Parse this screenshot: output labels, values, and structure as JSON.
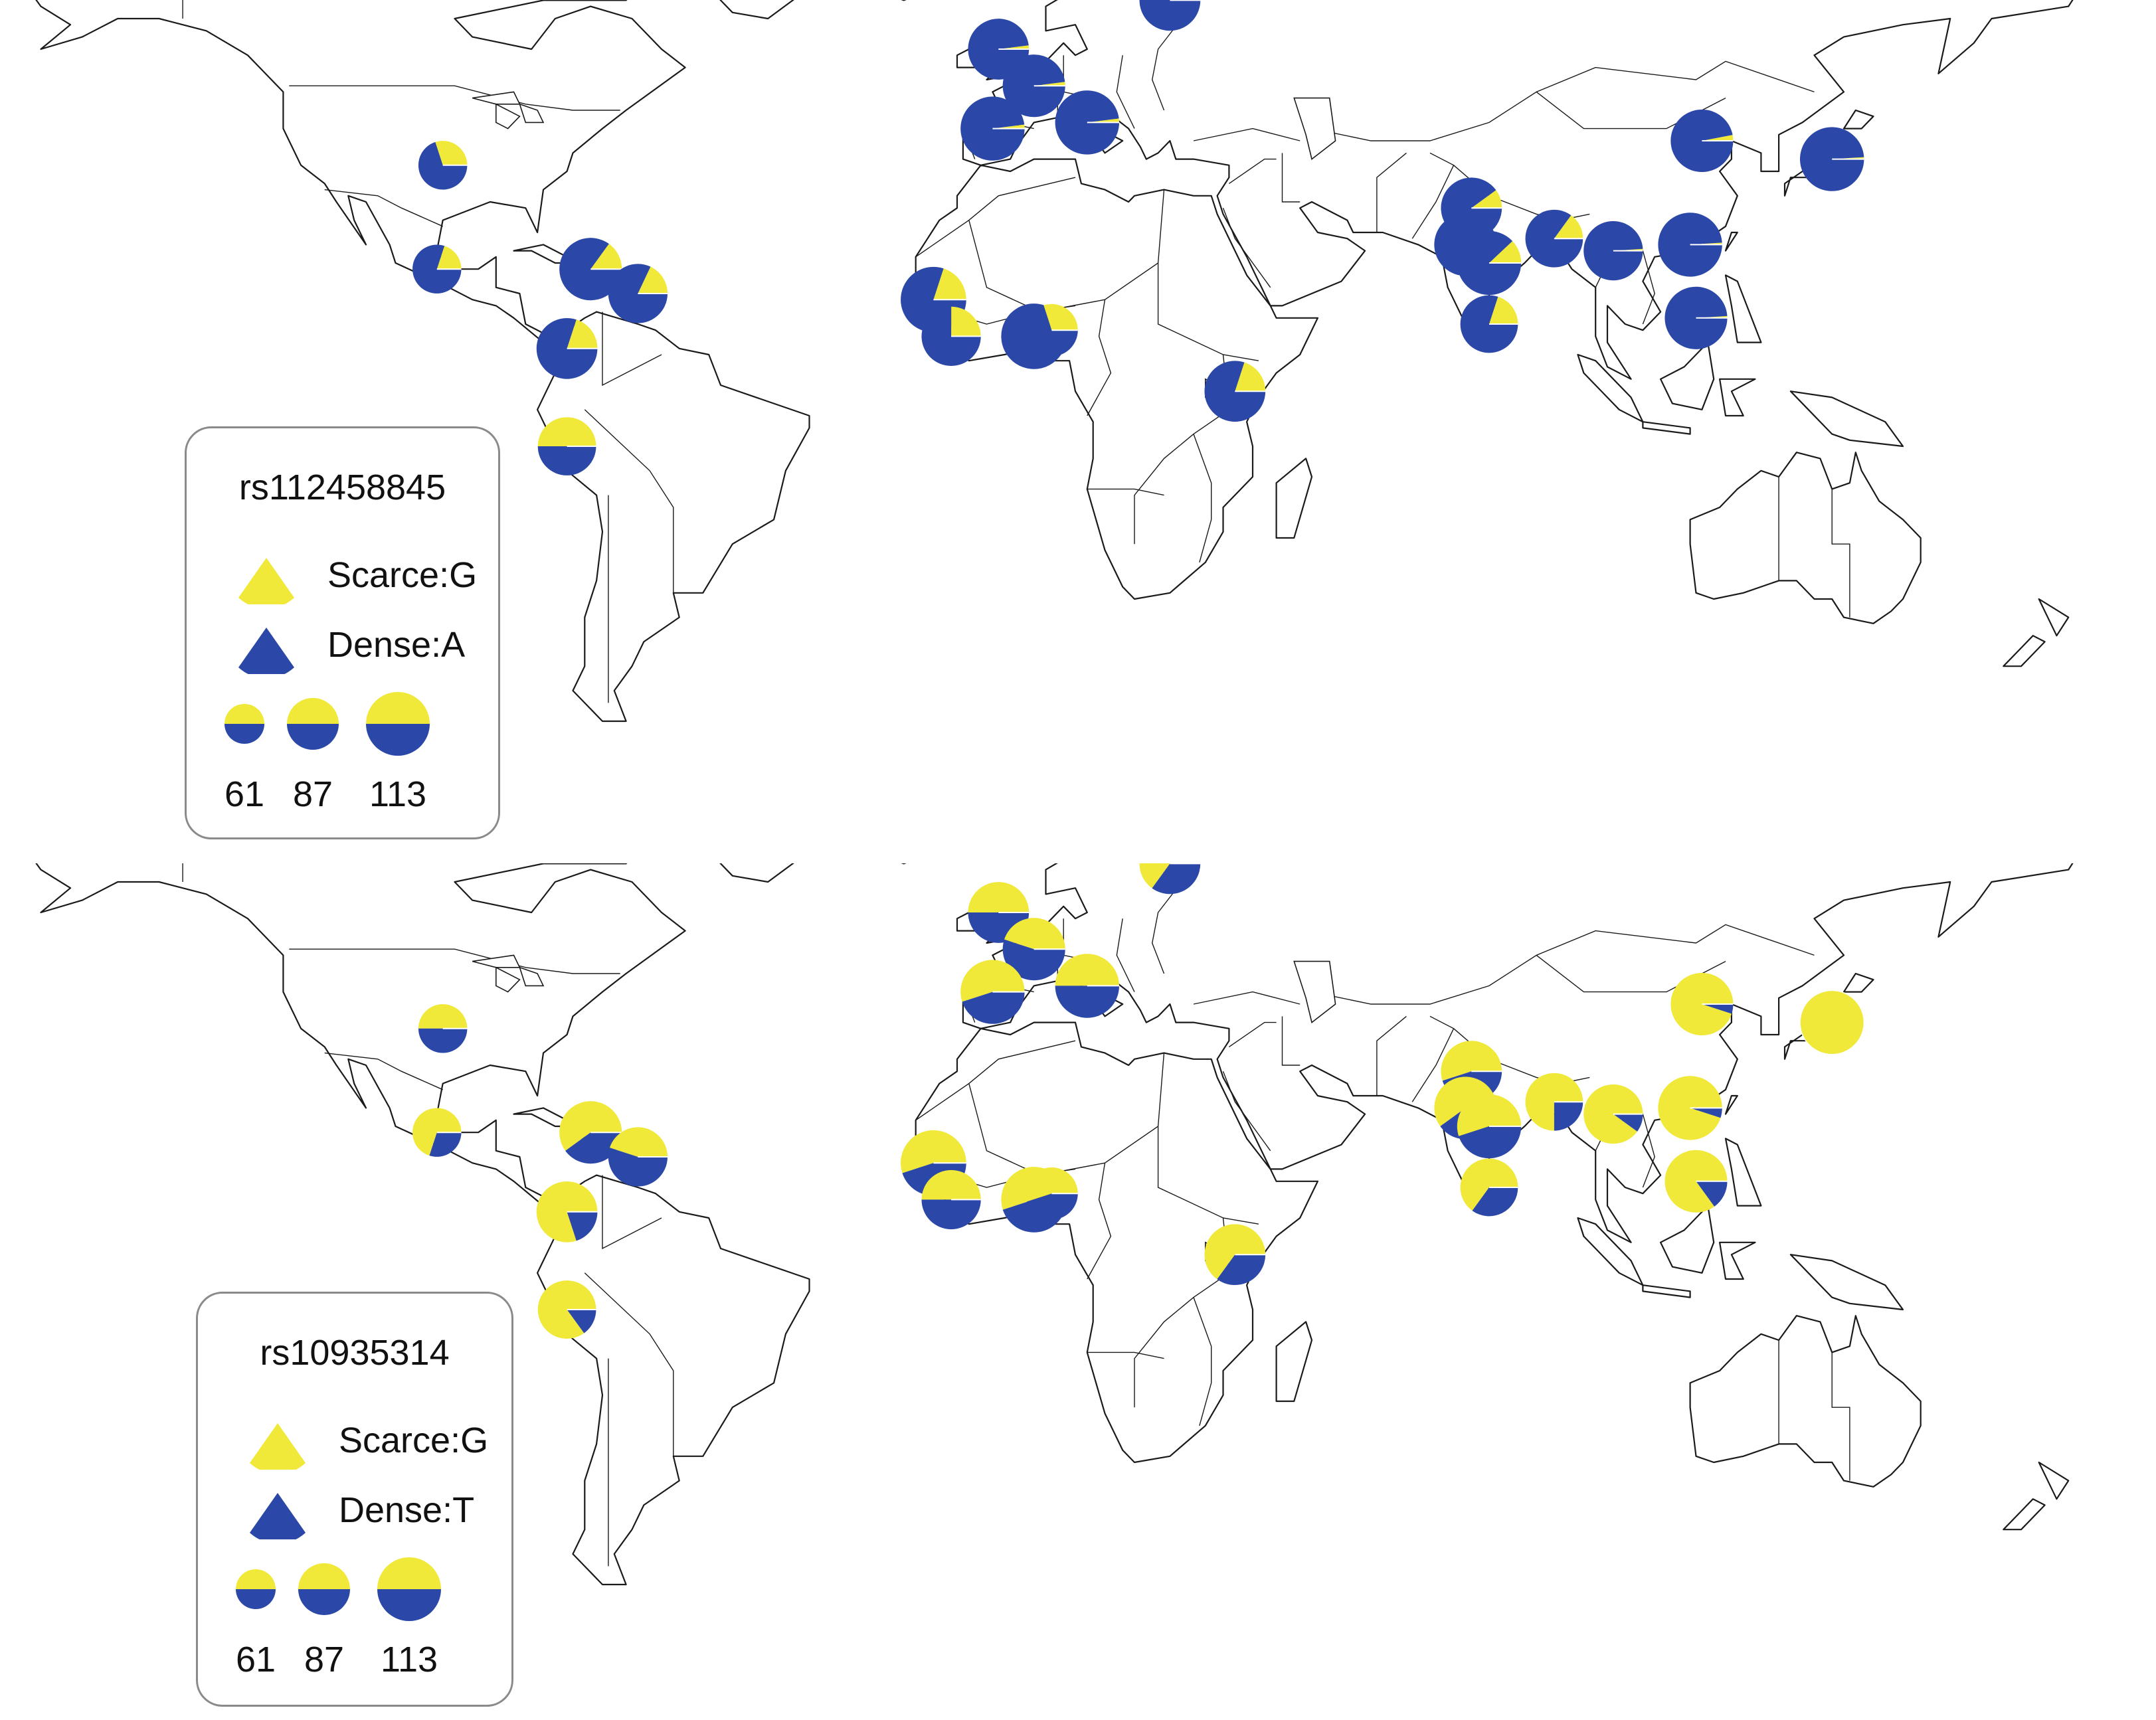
{
  "colors": {
    "scarce": "#f0e93a",
    "dense": "#2b48a8",
    "land_stroke": "#1a1a1a"
  },
  "panels": [
    {
      "id": "top",
      "legend": {
        "title": "rs112458845",
        "scarce_label": "Scarce:G",
        "dense_label": "Dense:A",
        "size_labels": [
          "61",
          "87",
          "113"
        ]
      },
      "populations": [
        {
          "lon": -97,
          "lat": 36,
          "n": 61,
          "scarce": 0.3
        },
        {
          "lon": -98,
          "lat": 19,
          "n": 61,
          "scarce": 0.2
        },
        {
          "lon": -72,
          "lat": 19,
          "n": 100,
          "scarce": 0.15
        },
        {
          "lon": -64,
          "lat": 15,
          "n": 90,
          "scarce": 0.18
        },
        {
          "lon": -76,
          "lat": 6,
          "n": 95,
          "scarce": 0.2
        },
        {
          "lon": -76,
          "lat": -10,
          "n": 87,
          "scarce": 0.5
        },
        {
          "lon": -3,
          "lat": 55,
          "n": 95,
          "scarce": 0.02
        },
        {
          "lon": 3,
          "lat": 49,
          "n": 100,
          "scarce": 0.02
        },
        {
          "lon": -4,
          "lat": 42,
          "n": 105,
          "scarce": 0.02
        },
        {
          "lon": 12,
          "lat": 43,
          "n": 105,
          "scarce": 0.02
        },
        {
          "lon": 26,
          "lat": 63,
          "n": 95,
          "scarce": 0.01
        },
        {
          "lon": -14,
          "lat": 14,
          "n": 110,
          "scarce": 0.2
        },
        {
          "lon": -11,
          "lat": 8,
          "n": 90,
          "scarce": 0.25
        },
        {
          "lon": 3,
          "lat": 8,
          "n": 110,
          "scarce": 0.08
        },
        {
          "lon": 6,
          "lat": 9,
          "n": 70,
          "scarce": 0.3
        },
        {
          "lon": 37,
          "lat": -1,
          "n": 95,
          "scarce": 0.2
        },
        {
          "lon": 77,
          "lat": 29,
          "n": 95,
          "scarce": 0.1
        },
        {
          "lon": 76,
          "lat": 23,
          "n": 100,
          "scarce": 0.03
        },
        {
          "lon": 80,
          "lat": 20,
          "n": 105,
          "scarce": 0.12
        },
        {
          "lon": 80,
          "lat": 10,
          "n": 85,
          "scarce": 0.2
        },
        {
          "lon": 91,
          "lat": 24,
          "n": 85,
          "scarce": 0.15
        },
        {
          "lon": 101,
          "lat": 22,
          "n": 90,
          "scarce": 0.01
        },
        {
          "lon": 114,
          "lat": 23,
          "n": 105,
          "scarce": 0.01
        },
        {
          "lon": 115,
          "lat": 11,
          "n": 100,
          "scarce": 0.01
        },
        {
          "lon": 116,
          "lat": 40,
          "n": 100,
          "scarce": 0.03
        },
        {
          "lon": 138,
          "lat": 37,
          "n": 105,
          "scarce": 0.01
        }
      ]
    },
    {
      "id": "bottom",
      "legend": {
        "title": "rs10935314",
        "scarce_label": "Scarce:G",
        "dense_label": "Dense:T",
        "size_labels": [
          "61",
          "87",
          "113"
        ]
      },
      "populations": [
        {
          "lon": -97,
          "lat": 36,
          "n": 61,
          "scarce": 0.5
        },
        {
          "lon": -98,
          "lat": 19,
          "n": 61,
          "scarce": 0.7
        },
        {
          "lon": -72,
          "lat": 19,
          "n": 100,
          "scarce": 0.6
        },
        {
          "lon": -64,
          "lat": 15,
          "n": 90,
          "scarce": 0.45
        },
        {
          "lon": -76,
          "lat": 6,
          "n": 95,
          "scarce": 0.8
        },
        {
          "lon": -76,
          "lat": -10,
          "n": 87,
          "scarce": 0.85
        },
        {
          "lon": -3,
          "lat": 55,
          "n": 95,
          "scarce": 0.5
        },
        {
          "lon": 3,
          "lat": 49,
          "n": 100,
          "scarce": 0.45
        },
        {
          "lon": -4,
          "lat": 42,
          "n": 105,
          "scarce": 0.55
        },
        {
          "lon": 12,
          "lat": 43,
          "n": 105,
          "scarce": 0.5
        },
        {
          "lon": 26,
          "lat": 63,
          "n": 95,
          "scarce": 0.65
        },
        {
          "lon": -14,
          "lat": 14,
          "n": 110,
          "scarce": 0.55
        },
        {
          "lon": -11,
          "lat": 8,
          "n": 90,
          "scarce": 0.5
        },
        {
          "lon": 3,
          "lat": 8,
          "n": 110,
          "scarce": 0.55
        },
        {
          "lon": 6,
          "lat": 9,
          "n": 70,
          "scarce": 0.55
        },
        {
          "lon": 37,
          "lat": -1,
          "n": 95,
          "scarce": 0.65
        },
        {
          "lon": 77,
          "lat": 29,
          "n": 95,
          "scarce": 0.55
        },
        {
          "lon": 76,
          "lat": 23,
          "n": 100,
          "scarce": 0.6
        },
        {
          "lon": 80,
          "lat": 20,
          "n": 105,
          "scarce": 0.55
        },
        {
          "lon": 80,
          "lat": 10,
          "n": 85,
          "scarce": 0.65
        },
        {
          "lon": 91,
          "lat": 24,
          "n": 85,
          "scarce": 0.75
        },
        {
          "lon": 101,
          "lat": 22,
          "n": 90,
          "scarce": 0.9
        },
        {
          "lon": 114,
          "lat": 23,
          "n": 105,
          "scarce": 0.95
        },
        {
          "lon": 115,
          "lat": 11,
          "n": 100,
          "scarce": 0.85
        },
        {
          "lon": 116,
          "lat": 40,
          "n": 100,
          "scarce": 0.95
        },
        {
          "lon": 138,
          "lat": 37,
          "n": 105,
          "scarce": 1.0
        }
      ]
    }
  ]
}
